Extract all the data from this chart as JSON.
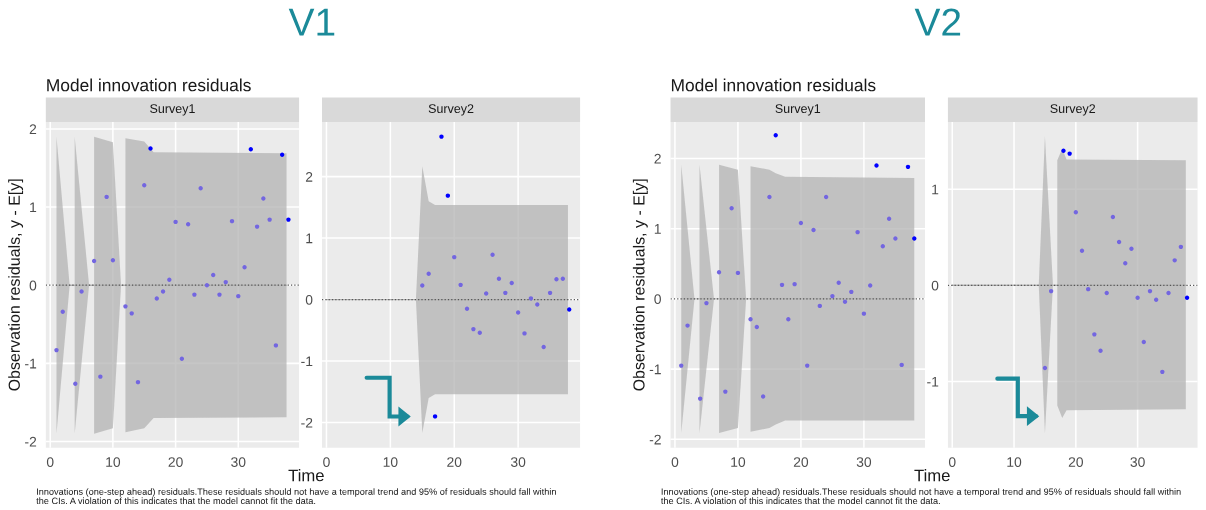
{
  "chart_data": [
    {
      "type": "scatter",
      "title": "Survey1",
      "ylabel": "Observation residuals, y - E[y]",
      "annotations": [
        "V1",
        "Model innovation residuals",
        "Innovations (one-step ahead) residuals.These residuals should not have a temporal trend and 95% of residuals should fall within\nthe CIs. A violation of this indicates that the model cannot fit the data."
      ],
      "xlim": [
        -0.7,
        39.7
      ],
      "xticks": [
        0,
        10,
        20,
        30
      ],
      "ylim": [
        -2.08,
        2.09
      ],
      "yticks": [
        -2,
        -1,
        0,
        1,
        2
      ],
      "grid": true,
      "marker": "circle",
      "ref_lines": [
        {
          "axis": "y",
          "value": 0,
          "line_style": "dotted",
          "color": "#555555"
        }
      ],
      "series": [
        {
          "type": "line",
          "marker": "none",
          "color": "#b3b3b3",
          "x": [
            1,
            3.1,
            3.5,
            3.9,
            6.2,
            6.6,
            7,
            10,
            11.3,
            11.7,
            12,
            15,
            16.5,
            37.7
          ],
          "values": [
            0,
            0,
            0,
            0,
            0,
            0,
            0,
            0,
            0,
            0,
            0,
            0,
            0,
            0
          ],
          "lower": [
            -1.9,
            0,
            null,
            -1.9,
            0,
            null,
            -1.9,
            -1.83,
            0,
            null,
            -1.88,
            -1.83,
            -1.7,
            -1.69
          ],
          "upper": [
            1.9,
            0,
            null,
            1.9,
            0,
            null,
            1.9,
            1.83,
            0,
            null,
            1.88,
            1.84,
            1.7,
            1.69
          ]
        },
        {
          "type": "scatter",
          "color": "#7366e0",
          "x": [
            1,
            2,
            4,
            5,
            7,
            8,
            9,
            10,
            12,
            13,
            14,
            15,
            17,
            18,
            19,
            20,
            21,
            22,
            23,
            24,
            25,
            26,
            27,
            28,
            29,
            30,
            31,
            33,
            34,
            35,
            36
          ],
          "values": [
            -0.83,
            -0.34,
            -1.26,
            -0.08,
            0.31,
            -1.17,
            1.13,
            0.32,
            -0.27,
            -0.36,
            -1.24,
            1.28,
            -0.17,
            -0.08,
            0.07,
            0.81,
            -0.94,
            0.78,
            -0.12,
            1.24,
            0.0,
            0.13,
            -0.12,
            0.04,
            0.82,
            -0.14,
            0.23,
            0.75,
            1.11,
            0.84,
            -0.77
          ]
        },
        {
          "type": "scatter",
          "color": "#0000ff",
          "x": [
            16,
            32,
            37,
            38
          ],
          "values": [
            1.75,
            1.74,
            1.67,
            0.84
          ]
        }
      ]
    },
    {
      "type": "scatter",
      "title": "Survey2",
      "xlabel": "Time",
      "xlim": [
        -0.7,
        39.7
      ],
      "xticks": [
        0,
        10,
        20,
        30
      ],
      "ylim": [
        -2.41,
        2.89
      ],
      "yticks": [
        -2,
        -1,
        0,
        1,
        2
      ],
      "grid": true,
      "marker": "circle",
      "ref_lines": [
        {
          "axis": "y",
          "value": 0,
          "line_style": "dotted",
          "color": "#555555"
        }
      ],
      "series": [
        {
          "type": "line",
          "marker": "none",
          "color": "#b3b3b3",
          "x": [
            0,
            14,
            15,
            16,
            17,
            37.8
          ],
          "values": [
            0,
            0,
            0,
            0,
            0,
            0
          ],
          "lower": [
            null,
            0,
            -2.17,
            -1.6,
            -1.54,
            -1.54
          ],
          "upper": [
            null,
            0,
            2.17,
            1.6,
            1.54,
            1.54
          ]
        },
        {
          "type": "scatter",
          "color": "#7366e0",
          "x": [
            15,
            16,
            20,
            21,
            22,
            23,
            24,
            25,
            26,
            27,
            28,
            29,
            30,
            31,
            32,
            33,
            34,
            35,
            36,
            37
          ],
          "values": [
            0.23,
            0.42,
            0.69,
            0.24,
            -0.15,
            -0.48,
            -0.54,
            0.1,
            0.73,
            0.34,
            0.11,
            0.27,
            -0.21,
            -0.55,
            0.02,
            -0.08,
            -0.77,
            0.11,
            0.33,
            0.34
          ]
        },
        {
          "type": "scatter",
          "color": "#0000ff",
          "x": [
            17,
            18,
            19,
            38
          ],
          "values": [
            -1.9,
            2.65,
            1.69,
            -0.16
          ]
        }
      ]
    },
    {
      "type": "scatter",
      "title": "Survey1",
      "ylabel": "Observation residuals, y - E[y]",
      "annotations": [
        "V2",
        "Model innovation residuals",
        "Innovations (one-step ahead) residuals.These residuals should not have a temporal trend and 95% of residuals should fall within\nthe CIs. A violation of this indicates that the model cannot fit the data."
      ],
      "xlim": [
        -0.7,
        39.7
      ],
      "xticks": [
        0,
        10,
        20,
        30
      ],
      "ylim": [
        -2.12,
        2.52
      ],
      "yticks": [
        -2,
        -1,
        0,
        1,
        2
      ],
      "grid": true,
      "marker": "circle",
      "ref_lines": [
        {
          "axis": "y",
          "value": 0,
          "line_style": "dotted",
          "color": "#555555"
        }
      ],
      "series": [
        {
          "type": "line",
          "marker": "none",
          "color": "#b3b3b3",
          "x": [
            1,
            3.1,
            3.5,
            3.9,
            6.2,
            6.6,
            7,
            10,
            11.3,
            11.7,
            12,
            15,
            16,
            17.5,
            38
          ],
          "values": [
            0,
            0,
            0,
            0,
            0,
            0,
            0,
            0,
            0,
            0,
            0,
            0,
            0,
            0,
            0
          ],
          "lower": [
            -1.91,
            0,
            null,
            -1.91,
            0,
            null,
            -1.91,
            -1.84,
            0,
            null,
            -1.89,
            -1.84,
            -1.79,
            -1.73,
            -1.73
          ],
          "upper": [
            1.91,
            0,
            null,
            1.91,
            0,
            null,
            1.91,
            1.84,
            0,
            null,
            1.89,
            1.84,
            1.79,
            1.74,
            1.72
          ]
        },
        {
          "type": "scatter",
          "color": "#7366e0",
          "x": [
            1,
            2,
            4,
            5,
            7,
            8,
            9,
            10,
            12,
            13,
            14,
            15,
            17,
            18,
            19,
            20,
            21,
            22,
            23,
            24,
            25,
            26,
            27,
            28,
            29,
            30,
            31,
            33,
            34,
            35,
            36
          ],
          "values": [
            -0.95,
            -0.38,
            -1.42,
            -0.06,
            0.38,
            -1.32,
            1.29,
            0.37,
            -0.29,
            -0.4,
            -1.39,
            1.45,
            0.2,
            -0.29,
            0.21,
            1.08,
            -0.95,
            0.98,
            -0.1,
            1.45,
            0.04,
            0.23,
            -0.04,
            0.1,
            0.95,
            -0.21,
            0.19,
            0.75,
            1.14,
            0.86,
            -0.94
          ]
        },
        {
          "type": "scatter",
          "color": "#0000ff",
          "x": [
            16,
            32,
            37,
            38
          ],
          "values": [
            2.33,
            1.9,
            1.88,
            0.86
          ]
        }
      ]
    },
    {
      "type": "scatter",
      "title": "Survey2",
      "xlabel": "Time",
      "xlim": [
        -0.7,
        39.7
      ],
      "xticks": [
        0,
        10,
        20,
        30
      ],
      "ylim": [
        -1.69,
        1.7
      ],
      "yticks": [
        -1,
        0,
        1
      ],
      "grid": true,
      "marker": "circle",
      "ref_lines": [
        {
          "axis": "y",
          "value": 0,
          "line_style": "dotted",
          "color": "#555555"
        }
      ],
      "series": [
        {
          "type": "line",
          "marker": "none",
          "color": "#b3b3b3",
          "x": [
            0,
            14,
            15,
            16.3,
            16.7,
            17,
            17.8,
            18.5,
            37.8
          ],
          "values": [
            0,
            0,
            0,
            0,
            0,
            0,
            0,
            0,
            0
          ],
          "lower": [
            null,
            0,
            -1.54,
            0,
            null,
            -1.25,
            -1.38,
            -1.3,
            -1.29
          ],
          "upper": [
            null,
            0,
            1.55,
            0,
            null,
            1.3,
            1.42,
            1.31,
            1.3
          ]
        },
        {
          "type": "scatter",
          "color": "#7366e0",
          "x": [
            15,
            16,
            20,
            21,
            22,
            23,
            24,
            25,
            26,
            27,
            28,
            29,
            30,
            31,
            32,
            33,
            34,
            35,
            36,
            37
          ],
          "values": [
            -0.86,
            -0.06,
            0.76,
            0.36,
            -0.04,
            -0.51,
            -0.68,
            -0.08,
            0.71,
            0.45,
            0.23,
            0.38,
            -0.13,
            -0.59,
            -0.06,
            -0.15,
            -0.9,
            -0.08,
            0.26,
            0.4
          ]
        },
        {
          "type": "scatter",
          "color": "#0000ff",
          "x": [
            18,
            19,
            38
          ],
          "values": [
            1.4,
            1.37,
            -0.13
          ]
        }
      ]
    }
  ]
}
